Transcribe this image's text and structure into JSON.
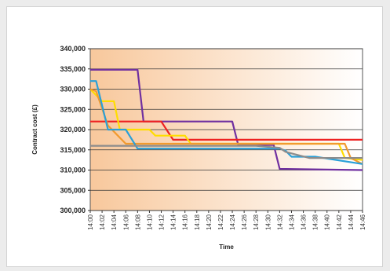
{
  "chart_data": {
    "type": "line",
    "title": "",
    "xlabel": "Time",
    "ylabel": "Contract cost (£)",
    "ylim": [
      300000,
      340000
    ],
    "yticks": [
      300000,
      305000,
      310000,
      315000,
      320000,
      325000,
      330000,
      335000,
      340000
    ],
    "ytick_labels": [
      "300,000",
      "305,000",
      "310,000",
      "315,000",
      "320,000",
      "325,000",
      "330,000",
      "335,000",
      "340,000"
    ],
    "x_categories": [
      "14:00",
      "14:02",
      "14:04",
      "14:06",
      "14:08",
      "14:10",
      "14:12",
      "14:14",
      "14:16",
      "14:18",
      "14:20",
      "14:22",
      "14:24",
      "14:26",
      "14:28",
      "14:30",
      "14:32",
      "14:34",
      "14:36",
      "14:38",
      "14:40",
      "14:42",
      "14:44",
      "14:46"
    ],
    "xlim_minutes": [
      0,
      46
    ],
    "grid": "horizontal",
    "legend": "none",
    "background_gradient": [
      "#f8c89c",
      "#ffffff"
    ],
    "series": [
      {
        "color": "#7030a0",
        "points": [
          [
            0,
            334800
          ],
          [
            8,
            334800
          ],
          [
            9,
            322000
          ],
          [
            24,
            322000
          ],
          [
            25,
            316200
          ],
          [
            31,
            316200
          ],
          [
            32,
            310300
          ],
          [
            46,
            310000
          ]
        ]
      },
      {
        "color": "#ee2222",
        "points": [
          [
            0,
            322000
          ],
          [
            12,
            322000
          ],
          [
            14,
            317500
          ],
          [
            46,
            317500
          ]
        ]
      },
      {
        "color": "#ffdd00",
        "points": [
          [
            0,
            330000
          ],
          [
            2,
            327000
          ],
          [
            4,
            327000
          ],
          [
            5,
            320000
          ],
          [
            10,
            320000
          ],
          [
            11,
            318500
          ],
          [
            16,
            318500
          ],
          [
            17,
            316500
          ],
          [
            42,
            316500
          ],
          [
            43,
            313000
          ],
          [
            46,
            312500
          ]
        ]
      },
      {
        "color": "#f29a2e",
        "points": [
          [
            0,
            330000
          ],
          [
            1,
            329500
          ],
          [
            3,
            321000
          ],
          [
            6,
            316500
          ],
          [
            43,
            316500
          ],
          [
            44,
            313000
          ],
          [
            46,
            311500
          ]
        ]
      },
      {
        "color": "#2aa0d8",
        "points": [
          [
            0,
            332000
          ],
          [
            1,
            332000
          ],
          [
            3,
            320000
          ],
          [
            5,
            320000
          ],
          [
            6,
            320000
          ],
          [
            8,
            315300
          ],
          [
            32,
            315300
          ],
          [
            33,
            314800
          ],
          [
            34,
            313300
          ],
          [
            38,
            313300
          ],
          [
            46,
            311500
          ]
        ]
      },
      {
        "color": "#8c8c8c",
        "points": [
          [
            0,
            316000
          ],
          [
            28,
            316000
          ],
          [
            32,
            315500
          ],
          [
            33,
            314500
          ],
          [
            37,
            313000
          ],
          [
            46,
            313000
          ]
        ]
      }
    ]
  }
}
